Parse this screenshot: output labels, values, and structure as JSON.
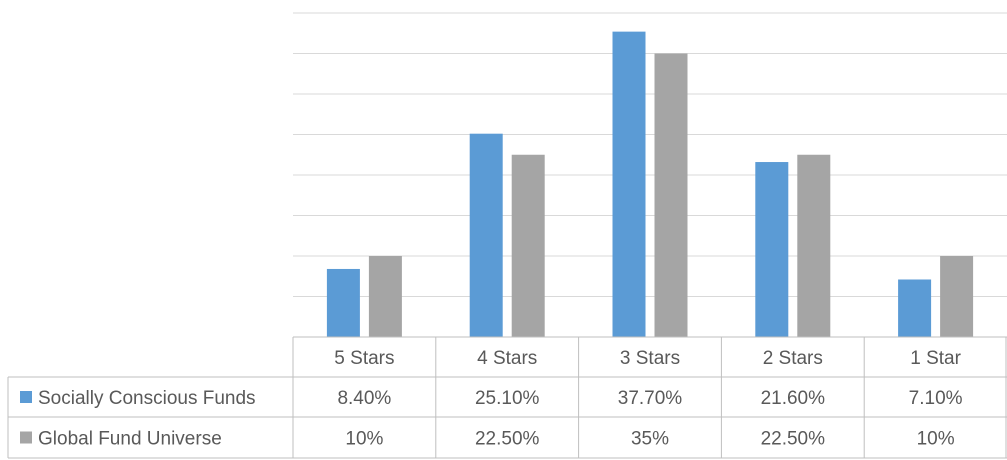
{
  "chart_data": {
    "type": "bar",
    "categories": [
      "5 Stars",
      "4 Stars",
      "3 Stars",
      "2 Stars",
      "1 Star"
    ],
    "series": [
      {
        "name": "Socially Conscious Funds",
        "color": "#5b9bd5",
        "values": [
          8.4,
          25.1,
          37.7,
          21.6,
          7.1
        ],
        "labels": [
          "8.40%",
          "25.10%",
          "37.70%",
          "21.60%",
          "7.10%"
        ]
      },
      {
        "name": "Global Fund Universe",
        "color": "#a5a5a5",
        "values": [
          10,
          22.5,
          35,
          22.5,
          10
        ],
        "labels": [
          "10%",
          "22.50%",
          "35%",
          "22.50%",
          "10%"
        ]
      }
    ],
    "ylim": [
      0,
      40
    ],
    "gridlines": true,
    "legend": "data-table-left"
  }
}
